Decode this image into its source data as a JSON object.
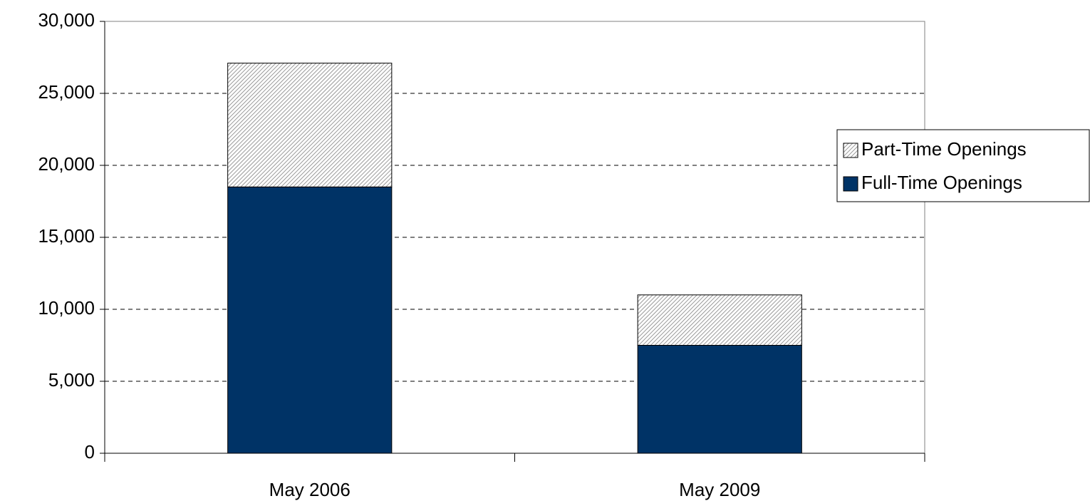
{
  "chart_data": {
    "type": "stacked_bar",
    "categories": [
      "May 2006",
      "May 2009"
    ],
    "series": [
      {
        "name": "Full-Time Openings",
        "color": "#003366",
        "values": [
          18500,
          7500
        ]
      },
      {
        "name": "Part-Time Openings",
        "color": "#808080",
        "pattern": "hatch",
        "values": [
          8600,
          3500
        ]
      }
    ],
    "ylim": [
      0,
      30000
    ],
    "yticks": [
      0,
      {
        "value": 5000,
        "label": "5,000"
      },
      {
        "value": 10000,
        "label": "10,000"
      },
      {
        "value": 15000,
        "label": "15,000"
      },
      {
        "value": 20000,
        "label": "20,000"
      },
      {
        "value": 25000,
        "label": "25,000"
      },
      {
        "value": 30000,
        "label": "30,000"
      }
    ],
    "grid": true,
    "legend": "right"
  }
}
